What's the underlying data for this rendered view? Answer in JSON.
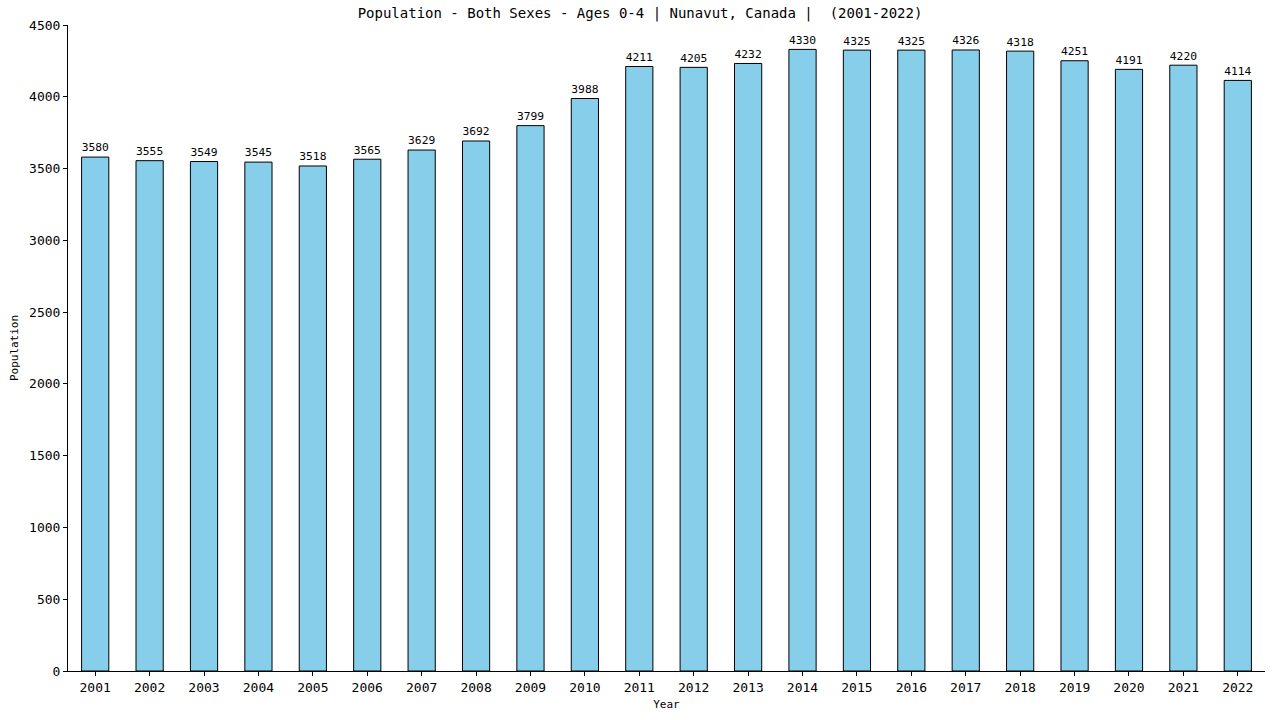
{
  "chart_data": {
    "type": "bar",
    "title": "Population - Both Sexes - Ages 0-4 | Nunavut, Canada |  (2001-2022)",
    "x_label": "Year",
    "y_label": "Population",
    "categories": [
      "2001",
      "2002",
      "2003",
      "2004",
      "2005",
      "2006",
      "2007",
      "2008",
      "2009",
      "2010",
      "2011",
      "2012",
      "2013",
      "2014",
      "2015",
      "2016",
      "2017",
      "2018",
      "2019",
      "2020",
      "2021",
      "2022"
    ],
    "values": [
      3580,
      3555,
      3549,
      3545,
      3518,
      3565,
      3629,
      3692,
      3799,
      3988,
      4211,
      4205,
      4232,
      4330,
      4325,
      4325,
      4326,
      4318,
      4251,
      4191,
      4220,
      4114
    ],
    "color": "#87ceeb",
    "ylim": [
      0,
      4500
    ],
    "yticks": [
      0,
      500,
      1000,
      1500,
      2000,
      2500,
      3000,
      3500,
      4000,
      4500
    ],
    "grid": false,
    "data_labels": true
  }
}
